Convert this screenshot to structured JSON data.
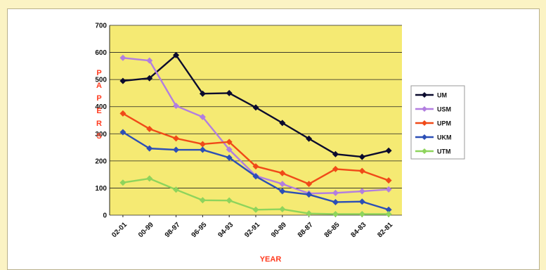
{
  "colors": {
    "page_bg": "#fbf3c4",
    "plot_bg": "#f5ea73",
    "axis_title": "#ff3b1f"
  },
  "chart_data": {
    "type": "line",
    "title": "",
    "xlabel": "YEAR",
    "ylabel": "PAPERS",
    "ylim": [
      0,
      700
    ],
    "yticks": [
      "0",
      "100",
      "200",
      "300",
      "400",
      "500",
      "600",
      "700"
    ],
    "grid": "horizontal",
    "legend_position": "right",
    "categories": [
      "02-01",
      "00-99",
      "98-97",
      "96-95",
      "94-93",
      "92-91",
      "90-89",
      "88-87",
      "86-85",
      "84-83",
      "82-81"
    ],
    "series": [
      {
        "name": "UM",
        "color": "#0b0b2e",
        "values": [
          495,
          505,
          590,
          448,
          450,
          397,
          340,
          282,
          225,
          215,
          238
        ]
      },
      {
        "name": "USM",
        "color": "#b27ee0",
        "values": [
          580,
          570,
          403,
          362,
          242,
          145,
          115,
          80,
          82,
          88,
          95
        ]
      },
      {
        "name": "UPM",
        "color": "#f04a18",
        "values": [
          375,
          318,
          283,
          262,
          270,
          180,
          155,
          115,
          170,
          163,
          128
        ]
      },
      {
        "name": "UKM",
        "color": "#2c4fb6",
        "values": [
          306,
          246,
          241,
          241,
          212,
          143,
          88,
          76,
          48,
          50,
          20
        ]
      },
      {
        "name": "UTM",
        "color": "#8ed45c",
        "values": [
          120,
          135,
          94,
          55,
          54,
          20,
          22,
          6,
          4,
          4,
          4
        ]
      }
    ]
  }
}
